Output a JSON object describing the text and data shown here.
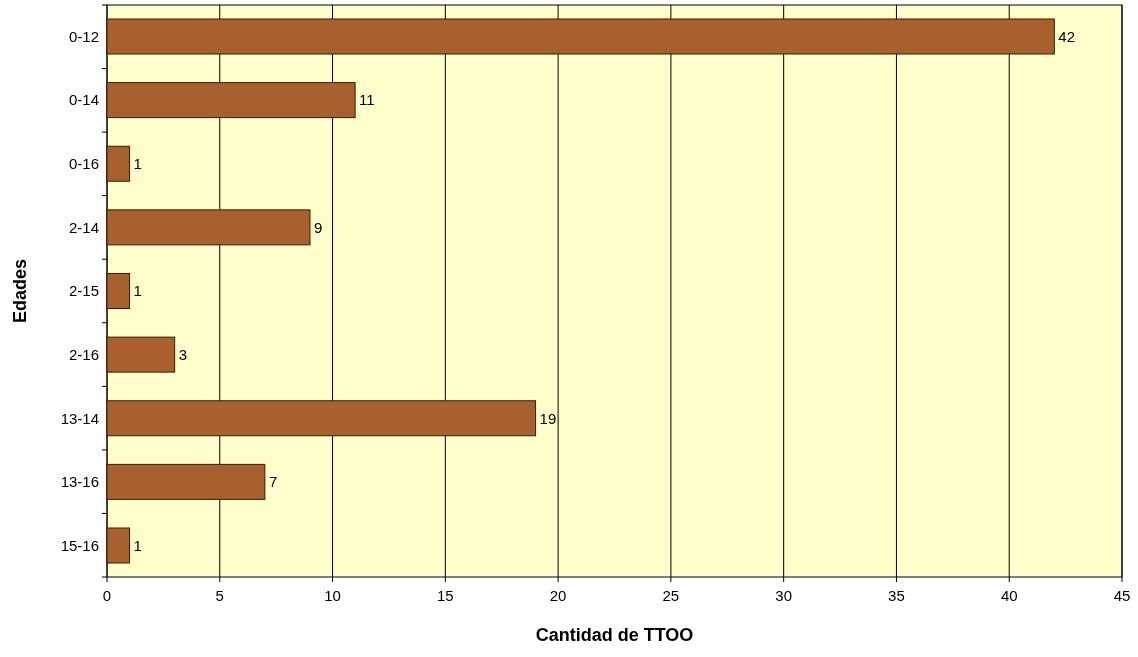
{
  "chart_data": {
    "type": "bar",
    "orientation": "horizontal",
    "xlabel": "Cantidad de TTOO",
    "ylabel": "Edades",
    "categories": [
      "0-12",
      "0-14",
      "0-16",
      "2-14",
      "2-15",
      "2-16",
      "13-14",
      "13-16",
      "15-16"
    ],
    "values": [
      42,
      11,
      1,
      9,
      1,
      3,
      19,
      7,
      1
    ],
    "color": "#a8602e",
    "xlim": [
      0,
      45
    ],
    "xticks": [
      0,
      5,
      10,
      15,
      20,
      25,
      30,
      35,
      40,
      45
    ],
    "grid": "x",
    "data_labels": true
  }
}
